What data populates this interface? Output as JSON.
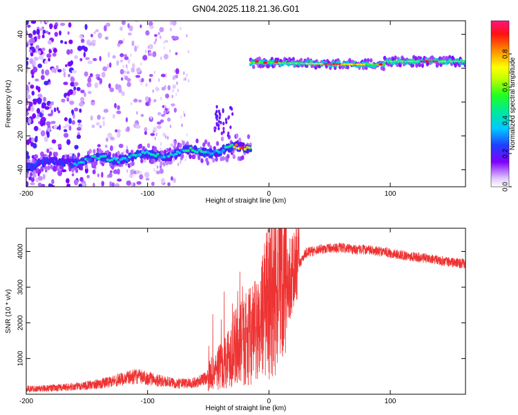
{
  "title": "GN04.2025.118.21.36.G01",
  "chart_data": [
    {
      "type": "heatmap",
      "xlabel": "Height of straight line (km)",
      "ylabel": "Frequency (Hz)",
      "xlim": [
        -200,
        162
      ],
      "ylim": [
        -50,
        48
      ],
      "x_ticks": [
        -200,
        -100,
        0,
        100
      ],
      "y_ticks": [
        -40,
        -20,
        0,
        20,
        40
      ],
      "colorbar": {
        "label": "Normalized spectral amplitude",
        "range": [
          0,
          1
        ],
        "ticks": [
          0.0,
          0.2,
          0.4,
          0.6,
          0.8
        ],
        "tick_labels": [
          "0.0",
          "0.2",
          "0.4",
          "0.6",
          "0.8"
        ]
      },
      "features": [
        {
          "x": [
            -200,
            -15
          ],
          "freq_start": -37,
          "freq_end": -27,
          "amplitude": "0.2–0.5, peaks ~0.9 near -25 km"
        },
        {
          "x": [
            -15,
            162
          ],
          "freq_start": 23,
          "freq_end": 24,
          "amplitude": "0.4–1.0"
        },
        {
          "x": [
            -200,
            -150
          ],
          "freq_range": [
            -50,
            48
          ],
          "amplitude": "scattered 0.05–0.2"
        }
      ]
    },
    {
      "type": "line",
      "xlabel": "Height of straight line (km)",
      "ylabel": "SNR (10 * v/v)",
      "xlim": [
        -200,
        162
      ],
      "ylim": [
        0,
        4650
      ],
      "x_ticks": [
        -200,
        -100,
        0,
        100
      ],
      "y_ticks": [
        1000,
        2000,
        3000,
        4000
      ],
      "series": [
        {
          "color": "#ee3333",
          "x": [
            -200,
            -180,
            -160,
            -140,
            -125,
            -110,
            -100,
            -90,
            -80,
            -70,
            -60,
            -50,
            -40,
            -35,
            -30,
            -25,
            -20,
            -15,
            -10,
            -5,
            0,
            5,
            10,
            15,
            20,
            25,
            30,
            35,
            40,
            50,
            60,
            70,
            80,
            90,
            95,
            100,
            110,
            120,
            130,
            140,
            150,
            162
          ],
          "y": [
            150,
            170,
            210,
            290,
            400,
            500,
            450,
            380,
            320,
            300,
            330,
            500,
            800,
            1000,
            1200,
            1400,
            1500,
            1650,
            1750,
            2200,
            2700,
            3000,
            3100,
            3200,
            3350,
            3650,
            3950,
            4000,
            4050,
            4100,
            4100,
            4050,
            4050,
            4000,
            4000,
            3950,
            3900,
            3850,
            3800,
            3750,
            3700,
            3650
          ]
        }
      ]
    }
  ]
}
